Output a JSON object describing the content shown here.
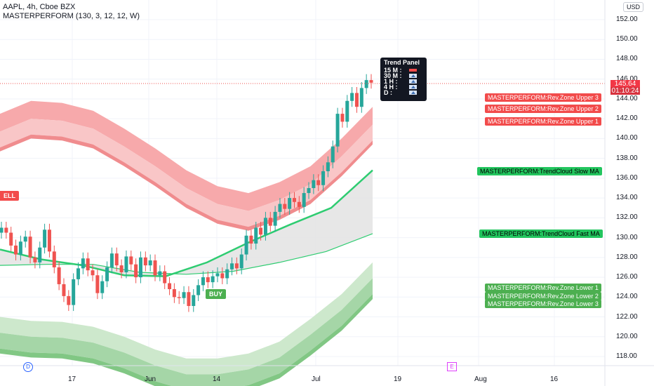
{
  "header": {
    "symbol_line": "AAPL, 4h, Cboe BZX",
    "indicator_line": "MASTERPERFORM (130, 3, 12, 12, W)"
  },
  "currency": "USD",
  "price_scale": [
    "152.00",
    "150.00",
    "148.00",
    "146.00",
    "144.00",
    "142.00",
    "140.00",
    "138.00",
    "136.00",
    "134.00",
    "132.00",
    "130.00",
    "128.00",
    "126.00",
    "124.00",
    "122.00",
    "120.00",
    "118.00"
  ],
  "time_scale": [
    "17",
    "Jun",
    "14",
    "Jul",
    "19",
    "Aug",
    "16"
  ],
  "last_price": {
    "value": "145.64",
    "countdown": "01:10:24"
  },
  "trend_panel": {
    "title": "Trend Panel",
    "rows": [
      {
        "label": "15 M :",
        "dir": "down"
      },
      {
        "label": "30 M :",
        "dir": "up"
      },
      {
        "label": "1 H :",
        "dir": "up"
      },
      {
        "label": "4 H :",
        "dir": "up"
      },
      {
        "label": "D :",
        "dir": "up"
      }
    ]
  },
  "right_labels": {
    "upper3": "MASTERPERFORM:Rev.Zone Upper 3",
    "upper2": "MASTERPERFORM:Rev.Zone Upper 2",
    "upper1": "MASTERPERFORM:Rev.Zone Upper 1",
    "slow_ma": "MASTERPERFORM:TrendCloud Slow MA",
    "fast_ma": "MASTERPERFORM:TrendCloud Fast MA",
    "lower1": "MASTERPERFORM:Rev.Zone Lower 1",
    "lower2": "MASTERPERFORM:Rev.Zone Lower 2",
    "lower3": "MASTERPERFORM:Rev.Zone Lower 3"
  },
  "signals": {
    "sell": "ELL",
    "buy": "BUY"
  },
  "events": {
    "dividend": "D",
    "earnings": "E"
  },
  "colors": {
    "up": "#26a69a",
    "down": "#ef5350",
    "upper_band": "#f77c80",
    "lower_band": "#66bb6a",
    "slow_ma": "#2ecc71",
    "cloud": "#e6e6e6"
  },
  "chart_data": {
    "type": "candlestick",
    "ylim": [
      117,
      153
    ],
    "x_ticks": [
      "17",
      "Jun",
      "14",
      "Jul",
      "19",
      "Aug",
      "16"
    ],
    "candles_approx_close": [
      131.0,
      130.5,
      129.2,
      128.3,
      129.6,
      130.1,
      128.0,
      127.5,
      129.0,
      130.8,
      128.6,
      127.0,
      125.3,
      124.1,
      123.2,
      125.8,
      126.9,
      127.9,
      126.7,
      126.2,
      124.4,
      125.6,
      127.0,
      128.4,
      127.2,
      126.5,
      128.1,
      127.3,
      126.0,
      128.0,
      127.2,
      127.7,
      126.2,
      126.6,
      125.4,
      124.8,
      124.0,
      123.9,
      124.5,
      123.1,
      124.2,
      125.2,
      126.0,
      125.5,
      126.1,
      126.4,
      125.9,
      126.8,
      127.4,
      126.9,
      128.3,
      130.2,
      129.4,
      131.0,
      130.3,
      132.0,
      131.2,
      132.6,
      133.4,
      132.9,
      134.0,
      133.6,
      133.1,
      134.5,
      135.0,
      135.8,
      135.3,
      136.7,
      137.6,
      139.2,
      142.5,
      141.7,
      143.8,
      144.6,
      143.2,
      145.1,
      145.9,
      145.64
    ],
    "rev_zone_upper": {
      "values_approx": [
        142.5,
        143.8,
        143.6,
        142.8,
        141.0,
        139.0,
        136.8,
        135.2,
        134.5,
        135.6,
        137.2,
        140.0,
        143.2
      ]
    },
    "rev_zone_lower": {
      "values_approx": [
        122.0,
        121.6,
        121.5,
        121.0,
        120.0,
        118.7,
        117.8,
        117.8,
        118.3,
        119.5,
        121.8,
        124.3,
        127.5
      ]
    },
    "trendcloud_slow_ma": {
      "values_approx": [
        128.8,
        127.8,
        127.2,
        126.2,
        126.1,
        127.5,
        129.5,
        131.3,
        133.0,
        136.8
      ]
    },
    "trendcloud_fast_ma": {
      "values_approx": [
        127.2,
        127.3,
        127.3,
        126.5,
        126.3,
        126.6,
        127.5,
        128.6,
        130.4
      ]
    }
  }
}
